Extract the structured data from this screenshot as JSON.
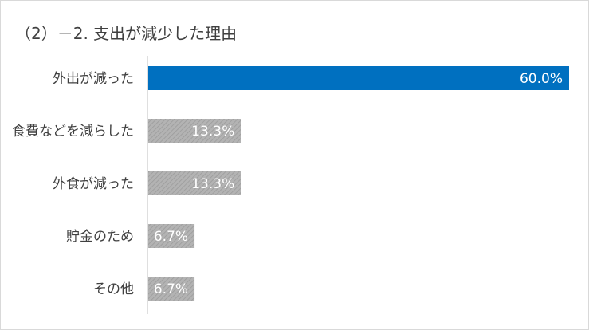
{
  "chart_data": {
    "type": "bar",
    "orientation": "horizontal",
    "title": "（2）－2. 支出が減少した理由",
    "categories": [
      "外出が減った",
      "食費などを減らした",
      "外食が減った",
      "貯金のため",
      "その他"
    ],
    "values": [
      60.0,
      13.3,
      13.3,
      6.7,
      6.7
    ],
    "value_labels": [
      "60.0%",
      "13.3%",
      "13.3%",
      "6.7%",
      "6.7%"
    ],
    "xlim": [
      0,
      60
    ],
    "grid": false,
    "legend": "none",
    "colors": {
      "highlight": "#0070c0",
      "default": "#a6a6a6",
      "axis": "#bfbfbf"
    }
  }
}
